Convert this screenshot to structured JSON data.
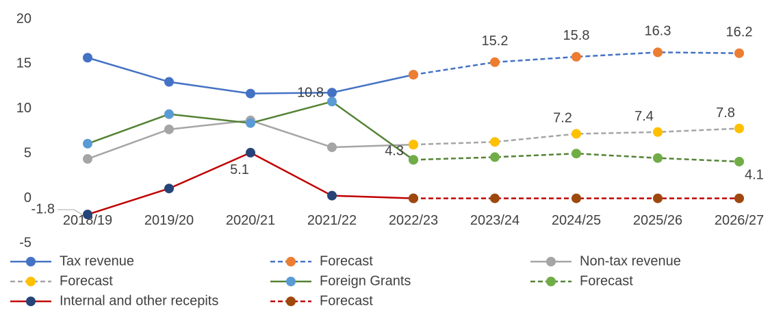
{
  "chart_data": {
    "type": "line",
    "categories": [
      "2018/19",
      "2019/20",
      "2020/21",
      "2021/22",
      "2022/23",
      "2023/24",
      "2024/25",
      "2025/26",
      "2026/27"
    ],
    "ylim": [
      -5,
      20
    ],
    "yticks": [
      -5,
      0,
      5,
      10,
      15,
      20
    ],
    "grid": false,
    "legend": "bottom",
    "series": [
      {
        "name": "Tax revenue",
        "color": "#4472c4",
        "marker_color": "#4472c4",
        "dashed": false,
        "values": [
          15.7,
          13.0,
          11.7,
          11.8,
          13.8,
          null,
          null,
          null,
          null
        ]
      },
      {
        "name": "Forecast",
        "color": "#4472c4",
        "marker_color": "#ed7d31",
        "dashed": true,
        "values": [
          null,
          null,
          null,
          null,
          13.8,
          15.2,
          15.8,
          16.3,
          16.2
        ],
        "value_labels": [
          null,
          null,
          null,
          null,
          null,
          "15.2",
          "15.8",
          "16.3",
          "16.2"
        ]
      },
      {
        "name": "Non-tax revenue",
        "color": "#a5a5a5",
        "marker_color": "#a5a5a5",
        "dashed": false,
        "values": [
          4.4,
          7.7,
          8.7,
          5.7,
          6.0,
          null,
          null,
          null,
          null
        ]
      },
      {
        "name": "Forecast",
        "color": "#a5a5a5",
        "marker_color": "#ffc000",
        "dashed": true,
        "values": [
          null,
          null,
          null,
          null,
          6.0,
          6.3,
          7.2,
          7.4,
          7.8
        ],
        "value_labels": [
          null,
          null,
          null,
          null,
          null,
          null,
          "7.2",
          "7.4",
          "7.8"
        ]
      },
      {
        "name": "Foreign Grants",
        "color": "#548235",
        "marker_color": "#5b9bd5",
        "dashed": false,
        "values": [
          6.1,
          9.4,
          8.4,
          10.8,
          4.3,
          null,
          null,
          null,
          null
        ],
        "value_labels": [
          null,
          null,
          null,
          "10.8",
          null,
          null,
          null,
          null,
          null
        ]
      },
      {
        "name": "Forecast",
        "color": "#548235",
        "marker_color": "#70ad47",
        "dashed": true,
        "values": [
          null,
          null,
          null,
          null,
          4.3,
          4.6,
          5.0,
          4.5,
          4.1
        ],
        "value_labels": [
          null,
          null,
          null,
          null,
          "4.3",
          null,
          null,
          null,
          "4.1"
        ]
      },
      {
        "name": "Internal and other recepits",
        "color": "#c00000",
        "marker_color": "#264478",
        "dashed": false,
        "values": [
          -1.8,
          1.1,
          5.1,
          0.3,
          0.0,
          null,
          null,
          null,
          null
        ],
        "value_labels": [
          "-1.8",
          null,
          "5.1",
          null,
          null,
          null,
          null,
          null,
          null
        ]
      },
      {
        "name": "Forecast",
        "color": "#c00000",
        "marker_color": "#9e480e",
        "dashed": true,
        "values": [
          null,
          null,
          null,
          null,
          0.0,
          0.0,
          0.0,
          0.0,
          0.0
        ]
      }
    ]
  }
}
